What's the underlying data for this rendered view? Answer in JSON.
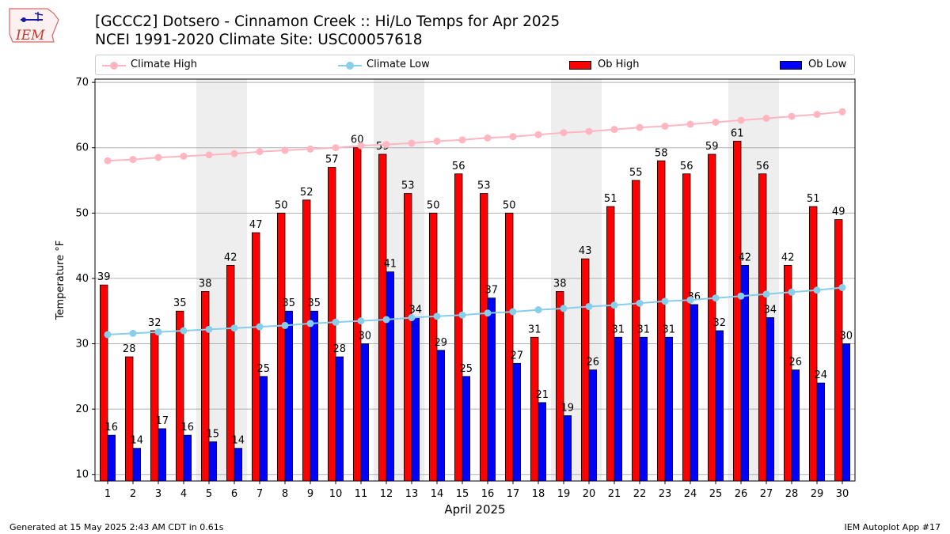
{
  "header": {
    "title_line1": "[GCCC2] Dotsero - Cinnamon Creek :: Hi/Lo Temps for Apr 2025",
    "title_line2": "NCEI 1991-2020 Climate Site: USC00057618",
    "logo_text": "IEM"
  },
  "footer": {
    "generated": "Generated at 15 May 2025 2:43 AM CDT in 0.61s",
    "app": "IEM Autoplot App #17"
  },
  "legend": {
    "climate_high": "Climate High",
    "climate_low": "Climate Low",
    "ob_high": "Ob High",
    "ob_low": "Ob Low"
  },
  "colors": {
    "ob_high": "#ff0000",
    "ob_low": "#0000ff",
    "climate_high": "#ffb6c1",
    "climate_low": "#87ceeb",
    "weekend_band": "#eeeeee",
    "grid": "#b0b0b0"
  },
  "chart_data": {
    "type": "bar",
    "xlabel": "April 2025",
    "ylabel": "Temperature °F",
    "ylim": [
      9,
      70.5
    ],
    "yticks": [
      10,
      20,
      30,
      40,
      50,
      60,
      70
    ],
    "grid": "horizontal",
    "legend_position": "top",
    "categories": [
      "1",
      "2",
      "3",
      "4",
      "5",
      "6",
      "7",
      "8",
      "9",
      "10",
      "11",
      "12",
      "13",
      "14",
      "15",
      "16",
      "17",
      "18",
      "19",
      "20",
      "21",
      "22",
      "23",
      "24",
      "25",
      "26",
      "27",
      "28",
      "29",
      "30"
    ],
    "weekend_days": [
      5,
      6,
      12,
      13,
      19,
      20,
      26,
      27
    ],
    "series": [
      {
        "name": "Ob High",
        "kind": "bar",
        "values": [
          39,
          28,
          32,
          35,
          38,
          42,
          47,
          50,
          52,
          57,
          60,
          59,
          53,
          50,
          56,
          53,
          50,
          31,
          38,
          43,
          51,
          55,
          58,
          56,
          59,
          61,
          56,
          42,
          51,
          49
        ]
      },
      {
        "name": "Ob Low",
        "kind": "bar",
        "values": [
          16,
          14,
          17,
          16,
          15,
          14,
          25,
          35,
          35,
          28,
          30,
          41,
          34,
          29,
          25,
          37,
          27,
          21,
          19,
          26,
          31,
          31,
          31,
          36,
          32,
          42,
          34,
          26,
          24,
          30
        ]
      },
      {
        "name": "Climate High",
        "kind": "line",
        "values": [
          58.0,
          58.2,
          58.5,
          58.7,
          58.9,
          59.1,
          59.4,
          59.6,
          59.8,
          60.0,
          60.3,
          60.5,
          60.7,
          61.0,
          61.2,
          61.5,
          61.7,
          62.0,
          62.3,
          62.5,
          62.8,
          63.1,
          63.3,
          63.6,
          63.9,
          64.2,
          64.5,
          64.8,
          65.1,
          65.5
        ]
      },
      {
        "name": "Climate Low",
        "kind": "line",
        "values": [
          31.4,
          31.6,
          31.8,
          32.0,
          32.2,
          32.4,
          32.6,
          32.8,
          33.1,
          33.3,
          33.5,
          33.7,
          34.0,
          34.2,
          34.4,
          34.7,
          34.9,
          35.2,
          35.4,
          35.7,
          35.9,
          36.2,
          36.5,
          36.7,
          37.0,
          37.3,
          37.6,
          37.9,
          38.2,
          38.6
        ]
      }
    ]
  }
}
